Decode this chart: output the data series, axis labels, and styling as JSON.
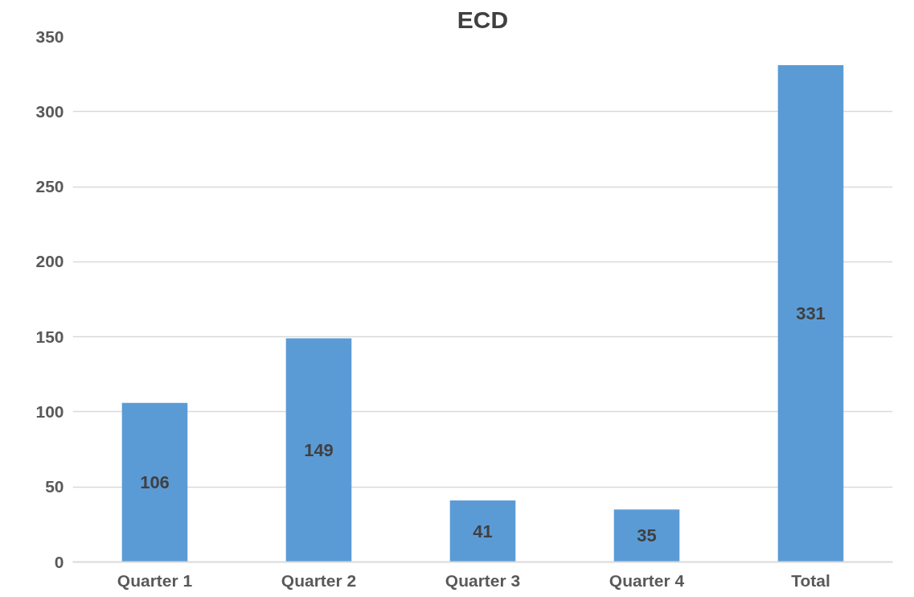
{
  "chart_data": {
    "type": "bar",
    "title": "ECD",
    "categories": [
      "Quarter 1",
      "Quarter 2",
      "Quarter 3",
      "Quarter 4",
      "Total"
    ],
    "values": [
      106,
      149,
      41,
      35,
      331
    ],
    "color": "#5b9bd5",
    "ylim": [
      0,
      350
    ],
    "yticks": [
      0,
      50,
      100,
      150,
      200,
      250,
      300,
      350
    ],
    "grid": "y",
    "data_labels": true
  }
}
